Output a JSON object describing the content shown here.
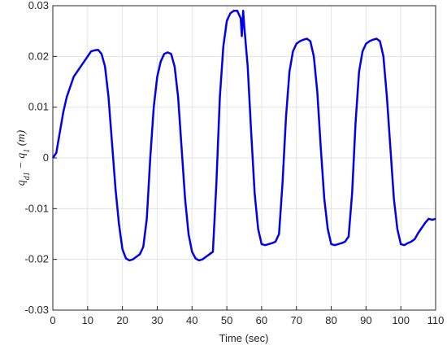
{
  "chart_data": {
    "type": "line",
    "xlabel": "Time (sec)",
    "ylabel_parts": [
      "q",
      "d1",
      " − q",
      "1",
      " (m)"
    ],
    "xlim": [
      0,
      110
    ],
    "ylim": [
      -0.03,
      0.03
    ],
    "xticks": [
      0,
      10,
      20,
      30,
      40,
      50,
      60,
      70,
      80,
      90,
      100,
      110
    ],
    "yticks": [
      -0.03,
      -0.02,
      -0.01,
      0,
      0.01,
      0.02,
      0.03
    ],
    "grid": true,
    "series": [
      {
        "color": "#0000ee",
        "x": [
          0,
          1,
          2,
          3,
          4,
          5,
          6,
          7,
          8,
          9,
          10,
          11,
          12,
          13,
          14,
          15,
          16,
          17,
          18,
          19,
          20,
          21,
          22,
          23,
          24,
          25,
          26,
          27,
          28,
          29,
          30,
          31,
          32,
          33,
          34,
          35,
          36,
          37,
          38,
          39,
          40,
          41,
          42,
          43,
          44,
          45,
          46,
          47,
          48,
          49,
          50,
          51,
          52,
          53,
          54,
          54.3,
          54.7,
          55,
          56,
          57,
          58,
          59,
          60,
          61,
          62,
          63,
          64,
          65,
          66,
          67,
          68,
          69,
          70,
          71,
          72,
          73,
          74,
          75,
          76,
          77,
          78,
          79,
          80,
          81,
          82,
          83,
          84,
          85,
          86,
          87,
          88,
          89,
          90,
          91,
          92,
          93,
          94,
          95,
          96,
          97,
          98,
          99,
          100,
          101,
          102,
          103,
          104,
          105,
          106,
          107,
          108,
          109,
          110
        ],
        "values": [
          0,
          0.001,
          0.005,
          0.009,
          0.012,
          0.014,
          0.016,
          0.017,
          0.018,
          0.019,
          0.02,
          0.021,
          0.0212,
          0.0213,
          0.0205,
          0.018,
          0.012,
          0.003,
          -0.006,
          -0.013,
          -0.018,
          -0.0198,
          -0.0202,
          -0.02,
          -0.0195,
          -0.019,
          -0.0175,
          -0.012,
          0,
          0.01,
          0.016,
          0.019,
          0.0205,
          0.0208,
          0.0205,
          0.018,
          0.012,
          0.002,
          -0.008,
          -0.015,
          -0.0185,
          -0.0198,
          -0.0202,
          -0.02,
          -0.0195,
          -0.019,
          -0.0185,
          -0.005,
          0.012,
          0.022,
          0.027,
          0.0285,
          0.029,
          0.029,
          0.0275,
          0.024,
          0.029,
          0.026,
          0.018,
          0.005,
          -0.007,
          -0.014,
          -0.017,
          -0.0172,
          -0.017,
          -0.0168,
          -0.0165,
          -0.015,
          -0.005,
          0.008,
          0.017,
          0.021,
          0.0225,
          0.023,
          0.0233,
          0.0235,
          0.023,
          0.02,
          0.013,
          0.002,
          -0.008,
          -0.014,
          -0.017,
          -0.0172,
          -0.017,
          -0.0168,
          -0.0165,
          -0.0155,
          -0.007,
          0.007,
          0.017,
          0.021,
          0.0225,
          0.023,
          0.0233,
          0.0235,
          0.023,
          0.02,
          0.012,
          0.002,
          -0.008,
          -0.014,
          -0.017,
          -0.0172,
          -0.0168,
          -0.0165,
          -0.016,
          -0.0148,
          -0.0138,
          -0.0128,
          -0.012,
          -0.0122,
          -0.012
        ]
      }
    ]
  }
}
